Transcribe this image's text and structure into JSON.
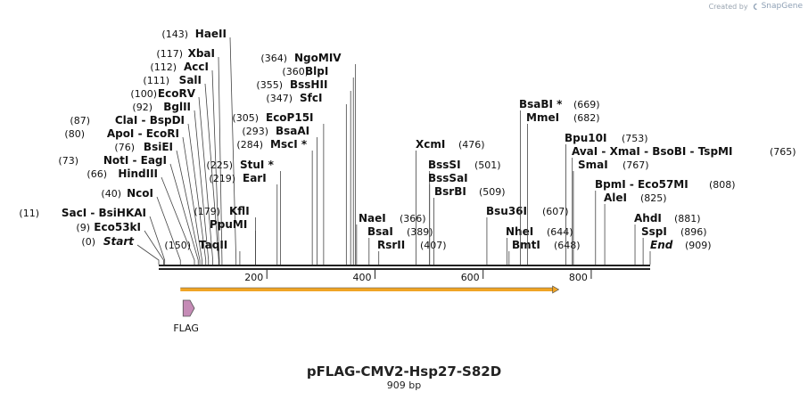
{
  "credit": {
    "prefix": "Created by",
    "brand": "SnapGene"
  },
  "map": {
    "title": "pFLAG-CMV2-Hsp27-S82D",
    "length_label": "909 bp",
    "total_bp": 909,
    "ticks": [
      {
        "pos": 200,
        "label": "200"
      },
      {
        "pos": 400,
        "label": "400"
      },
      {
        "pos": 600,
        "label": "600"
      },
      {
        "pos": 800,
        "label": "800"
      }
    ],
    "features": [
      {
        "name": "FLAG",
        "start": 45,
        "end": 66,
        "color": "#c58bb6"
      }
    ],
    "orf": {
      "start": 40,
      "end": 740,
      "color": "#f0a526"
    },
    "left_sites": [
      {
        "pos": 0,
        "label_pos": "(0)",
        "names": [
          "Start"
        ],
        "italic": true
      },
      {
        "pos": 9,
        "label_pos": "(9)",
        "names": [
          "Eco53kI"
        ]
      },
      {
        "pos": 11,
        "label_pos": "(11)",
        "names": [
          "SacI",
          "BsiHKAI"
        ]
      },
      {
        "pos": 40,
        "label_pos": "(40)",
        "names": [
          "NcoI"
        ]
      },
      {
        "pos": 66,
        "label_pos": "(66)",
        "names": [
          "HindIII"
        ]
      },
      {
        "pos": 73,
        "label_pos": "(73)",
        "names": [
          "NotI",
          "EagI"
        ]
      },
      {
        "pos": 76,
        "label_pos": "(76)",
        "names": [
          "BsiEI"
        ]
      },
      {
        "pos": 80,
        "label_pos": "(80)",
        "names": [
          "ApoI",
          "EcoRI"
        ]
      },
      {
        "pos": 87,
        "label_pos": "(87)",
        "names": [
          "ClaI",
          "BspDI"
        ]
      },
      {
        "pos": 92,
        "label_pos": "(92)",
        "names": [
          "BglII"
        ]
      },
      {
        "pos": 100,
        "label_pos": "(100)",
        "names": [
          "EcoRV"
        ]
      },
      {
        "pos": 111,
        "label_pos": "(111)",
        "names": [
          "SalI"
        ]
      },
      {
        "pos": 112,
        "label_pos": "(112)",
        "names": [
          "AccI"
        ]
      },
      {
        "pos": 117,
        "label_pos": "(117)",
        "names": [
          "XbaI"
        ]
      },
      {
        "pos": 143,
        "label_pos": "(143)",
        "names": [
          "HaeII"
        ]
      }
    ],
    "mid_sites": [
      {
        "pos": 150,
        "label_pos": "(150)",
        "names": [
          "TaqII"
        ],
        "side": "left"
      },
      {
        "pos": 179,
        "label_pos": "(179)",
        "names": [
          "PpuMI"
        ],
        "side": "left"
      },
      {
        "pos": 179,
        "label_pos": "",
        "names": [
          "KflI"
        ],
        "side": "left"
      },
      {
        "pos": 219,
        "label_pos": "(219)",
        "names": [
          "EarI"
        ],
        "side": "left"
      },
      {
        "pos": 225,
        "label_pos": "(225)",
        "names": [
          "StuI *"
        ],
        "side": "left"
      },
      {
        "pos": 284,
        "label_pos": "(284)",
        "names": [
          "MscI *"
        ],
        "side": "left"
      },
      {
        "pos": 293,
        "label_pos": "(293)",
        "names": [
          "BsaAI"
        ],
        "side": "left"
      },
      {
        "pos": 305,
        "label_pos": "(305)",
        "names": [
          "EcoP15I"
        ],
        "side": "left"
      },
      {
        "pos": 347,
        "label_pos": "(347)",
        "names": [
          "SfcI"
        ],
        "side": "left"
      },
      {
        "pos": 355,
        "label_pos": "(355)",
        "names": [
          "BssHII"
        ],
        "side": "left"
      },
      {
        "pos": 360,
        "label_pos": "(360)",
        "names": [
          "BlpI"
        ],
        "side": "left"
      },
      {
        "pos": 364,
        "label_pos": "(364)",
        "names": [
          "NgoMIV"
        ],
        "side": "left"
      }
    ],
    "right_sites": [
      {
        "pos": 366,
        "label_pos": "(366)",
        "names": [
          "NaeI"
        ]
      },
      {
        "pos": 389,
        "label_pos": "(389)",
        "names": [
          "BsaI"
        ]
      },
      {
        "pos": 407,
        "label_pos": "(407)",
        "names": [
          "RsrII"
        ]
      },
      {
        "pos": 476,
        "label_pos": "(476)",
        "names": [
          "XcmI"
        ]
      },
      {
        "pos": 501,
        "label_pos": "(501)",
        "names": [
          "BssSI"
        ]
      },
      {
        "pos": 501,
        "label_pos": "",
        "names": [
          "BssSaI"
        ]
      },
      {
        "pos": 509,
        "label_pos": "(509)",
        "names": [
          "BsrBI"
        ]
      },
      {
        "pos": 607,
        "label_pos": "(607)",
        "names": [
          "Bsu36I"
        ]
      },
      {
        "pos": 644,
        "label_pos": "(644)",
        "names": [
          "NheI"
        ]
      },
      {
        "pos": 648,
        "label_pos": "(648)",
        "names": [
          "BmtI"
        ]
      },
      {
        "pos": 669,
        "label_pos": "(669)",
        "names": [
          "BsaBI *"
        ]
      },
      {
        "pos": 682,
        "label_pos": "(682)",
        "names": [
          "MmeI"
        ]
      },
      {
        "pos": 753,
        "label_pos": "(753)",
        "names": [
          "Bpu10I"
        ]
      },
      {
        "pos": 765,
        "label_pos": "(765)",
        "names": [
          "AvaI",
          "XmaI",
          "BsoBI",
          "TspMI"
        ]
      },
      {
        "pos": 767,
        "label_pos": "(767)",
        "names": [
          "SmaI"
        ]
      },
      {
        "pos": 808,
        "label_pos": "(808)",
        "names": [
          "BpmI",
          "Eco57MI"
        ]
      },
      {
        "pos": 825,
        "label_pos": "(825)",
        "names": [
          "AleI"
        ]
      },
      {
        "pos": 881,
        "label_pos": "(881)",
        "names": [
          "AhdI"
        ]
      },
      {
        "pos": 896,
        "label_pos": "(896)",
        "names": [
          "SspI"
        ]
      },
      {
        "pos": 909,
        "label_pos": "(909)",
        "names": [
          "End"
        ],
        "italic": true
      }
    ]
  }
}
